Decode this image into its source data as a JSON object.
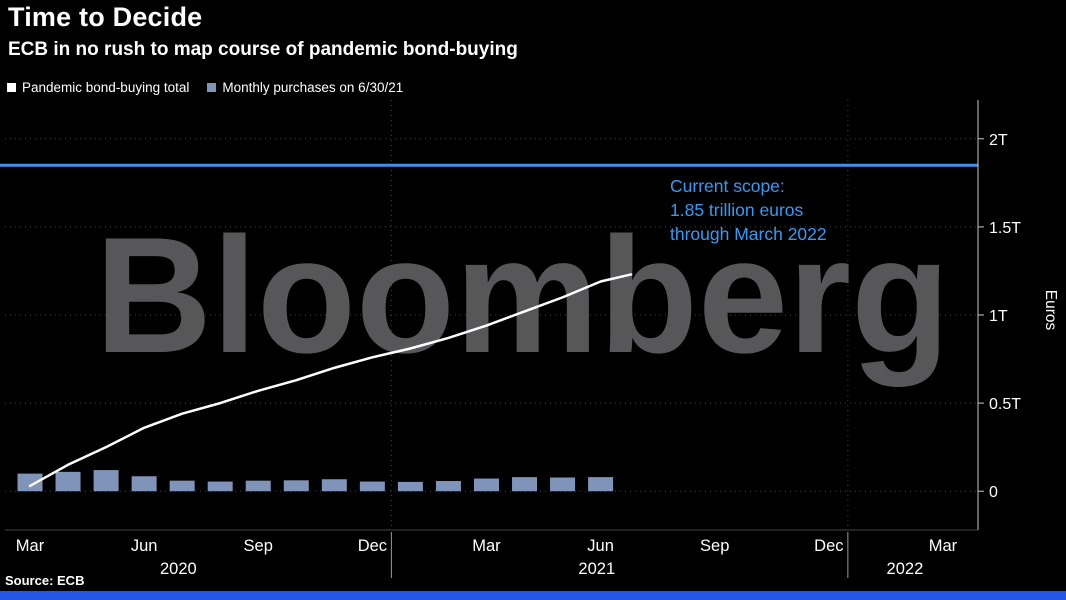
{
  "header": {
    "title": "Time to Decide",
    "subtitle": "ECB in no rush to map course of pandemic bond-buying"
  },
  "legend": {
    "items": [
      {
        "label": "Pandemic bond-buying total",
        "color": "#ffffff"
      },
      {
        "label": "Monthly purchases on 6/30/21",
        "color": "#7f94b8"
      }
    ]
  },
  "annotation": {
    "line1": "Current scope:",
    "line2": "1.85 trillion euros",
    "line3": "through March 2022",
    "color": "#2f9df8"
  },
  "watermark_text": "Bloomberg",
  "footer": {
    "source": "Source: ECB"
  },
  "colors": {
    "background": "#000000",
    "text": "#ffffff",
    "grid": "#454545",
    "axis": "#c9c9c9",
    "watermark": "#57575a",
    "scope_line": "#3f8ff0",
    "accent_bar": "#2457e6"
  },
  "chart_data": {
    "type": "combo",
    "title": "Time to Decide",
    "subtitle": "ECB in no rush to map course of pandemic bond-buying",
    "ylabel": "Euros",
    "unit": "trillions of euros",
    "ylim": [
      -0.22,
      2.22
    ],
    "grid": true,
    "legend_position": "top-left",
    "y_ticks": [
      {
        "value": 0,
        "label": "0"
      },
      {
        "value": 0.5,
        "label": "0.5T"
      },
      {
        "value": 1,
        "label": "1T"
      },
      {
        "value": 1.5,
        "label": "1.5T"
      },
      {
        "value": 2,
        "label": "2T"
      }
    ],
    "x_ticks": [
      {
        "idx": 0,
        "label": "Mar"
      },
      {
        "idx": 3,
        "label": "Jun"
      },
      {
        "idx": 6,
        "label": "Sep"
      },
      {
        "idx": 9,
        "label": "Dec"
      },
      {
        "idx": 12,
        "label": "Mar"
      },
      {
        "idx": 15,
        "label": "Jun"
      },
      {
        "idx": 18,
        "label": "Sep"
      },
      {
        "idx": 21,
        "label": "Dec"
      },
      {
        "idx": 24,
        "label": "Mar"
      }
    ],
    "year_labels": [
      {
        "idx": 3.9,
        "label": "2020"
      },
      {
        "idx": 14.9,
        "label": "2021"
      },
      {
        "idx": 23.0,
        "label": "2022"
      }
    ],
    "year_separators": [
      9.5,
      21.5
    ],
    "scope_line_value": 1.85,
    "series": [
      {
        "name": "Pandemic bond-buying total",
        "type": "line",
        "color": "#ffffff",
        "x": [
          0,
          1,
          2,
          3,
          4,
          5,
          6,
          7,
          8,
          9,
          10,
          11,
          12,
          13,
          14,
          15,
          15.8
        ],
        "values": [
          0.03,
          0.15,
          0.25,
          0.36,
          0.44,
          0.5,
          0.57,
          0.63,
          0.7,
          0.76,
          0.81,
          0.87,
          0.94,
          1.02,
          1.1,
          1.19,
          1.23
        ]
      },
      {
        "name": "Monthly purchases on 6/30/21",
        "type": "bar",
        "color": "#7f94b8",
        "x": [
          0,
          1,
          2,
          3,
          4,
          5,
          6,
          7,
          8,
          9,
          10,
          11,
          12,
          13,
          14,
          15
        ],
        "values": [
          0.1,
          0.11,
          0.12,
          0.085,
          0.06,
          0.055,
          0.06,
          0.062,
          0.068,
          0.055,
          0.053,
          0.058,
          0.072,
          0.08,
          0.078,
          0.08
        ]
      }
    ]
  }
}
